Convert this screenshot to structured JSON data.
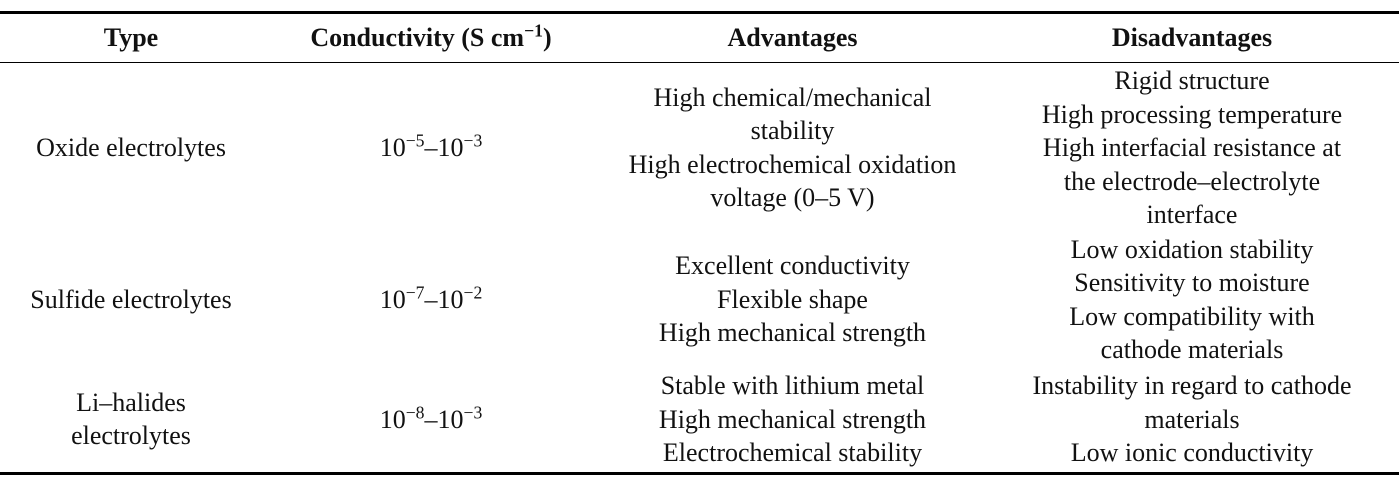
{
  "table": {
    "headers": [
      [
        {
          "text": "Type"
        }
      ],
      [
        {
          "text": "Conductivity (S cm"
        },
        {
          "text": "−1",
          "sup": true
        },
        {
          "text": ")"
        }
      ],
      [
        {
          "text": "Advantages"
        }
      ],
      [
        {
          "text": "Disadvantages"
        }
      ]
    ],
    "rows": [
      {
        "type": [
          "Oxide electrolytes"
        ],
        "conductivity": [
          {
            "text": "10"
          },
          {
            "text": "−5",
            "sup": true
          },
          {
            "text": "–10"
          },
          {
            "text": "−3",
            "sup": true
          }
        ],
        "advantages": [
          "High chemical/mechanical",
          "stability",
          "High electrochemical oxidation",
          "voltage (0–5 V)"
        ],
        "disadvantages": [
          "Rigid structure",
          "High processing temperature",
          "High interfacial resistance at",
          "the electrode–electrolyte",
          "interface"
        ]
      },
      {
        "type": [
          "Sulfide electrolytes"
        ],
        "conductivity": [
          {
            "text": "10"
          },
          {
            "text": "−7",
            "sup": true
          },
          {
            "text": "–10"
          },
          {
            "text": "−2",
            "sup": true
          }
        ],
        "advantages": [
          "Excellent conductivity",
          "Flexible shape",
          "High mechanical strength"
        ],
        "disadvantages": [
          "Low oxidation stability",
          "Sensitivity to moisture",
          "Low compatibility with",
          "cathode materials"
        ]
      },
      {
        "type": [
          "Li–halides",
          "electrolytes"
        ],
        "conductivity": [
          {
            "text": "10"
          },
          {
            "text": "−8",
            "sup": true
          },
          {
            "text": "–10"
          },
          {
            "text": "−3",
            "sup": true
          }
        ],
        "advantages": [
          "Stable with lithium metal",
          "High mechanical strength",
          "Electrochemical stability"
        ],
        "disadvantages": [
          "Instability in regard to cathode",
          "materials",
          "Low ionic conductivity"
        ]
      }
    ]
  }
}
